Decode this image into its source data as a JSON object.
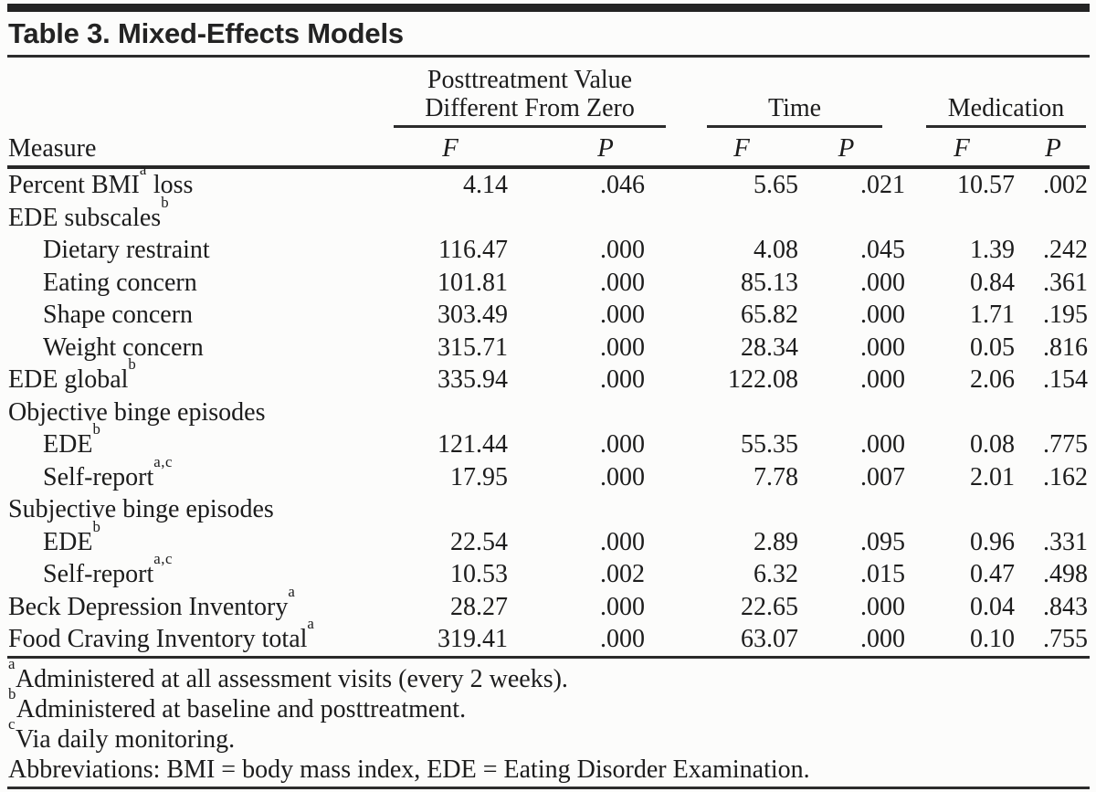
{
  "title": "Table 3. Mixed-Effects Models",
  "header": {
    "measure_label": "Measure",
    "groups": [
      {
        "line1": "Posttreatment Value",
        "line2": "Different From Zero"
      },
      {
        "line1": "",
        "line2": "Time"
      },
      {
        "line1": "",
        "line2": "Medication"
      }
    ],
    "sub": [
      "F",
      "P",
      "F",
      "P",
      "F",
      "P"
    ]
  },
  "rows": [
    {
      "pre": "Percent BMI",
      "sup": "a",
      "post": " loss",
      "indent": false,
      "values": [
        "4.14",
        ".046",
        "5.65",
        ".021",
        "10.57",
        ".002"
      ]
    },
    {
      "pre": "EDE subscales",
      "sup": "b",
      "post": "",
      "indent": false,
      "values": [
        "",
        "",
        "",
        "",
        "",
        ""
      ]
    },
    {
      "pre": "Dietary restraint",
      "sup": "",
      "post": "",
      "indent": true,
      "values": [
        "116.47",
        ".000",
        "4.08",
        ".045",
        "1.39",
        ".242"
      ]
    },
    {
      "pre": "Eating concern",
      "sup": "",
      "post": "",
      "indent": true,
      "values": [
        "101.81",
        ".000",
        "85.13",
        ".000",
        "0.84",
        ".361"
      ]
    },
    {
      "pre": "Shape concern",
      "sup": "",
      "post": "",
      "indent": true,
      "values": [
        "303.49",
        ".000",
        "65.82",
        ".000",
        "1.71",
        ".195"
      ]
    },
    {
      "pre": "Weight concern",
      "sup": "",
      "post": "",
      "indent": true,
      "values": [
        "315.71",
        ".000",
        "28.34",
        ".000",
        "0.05",
        ".816"
      ]
    },
    {
      "pre": "EDE global",
      "sup": "b",
      "post": "",
      "indent": false,
      "values": [
        "335.94",
        ".000",
        "122.08",
        ".000",
        "2.06",
        ".154"
      ]
    },
    {
      "pre": "Objective binge episodes",
      "sup": "",
      "post": "",
      "indent": false,
      "values": [
        "",
        "",
        "",
        "",
        "",
        ""
      ]
    },
    {
      "pre": "EDE",
      "sup": "b",
      "post": "",
      "indent": true,
      "values": [
        "121.44",
        ".000",
        "55.35",
        ".000",
        "0.08",
        ".775"
      ]
    },
    {
      "pre": "Self-report",
      "sup": "a,c",
      "post": "",
      "indent": true,
      "values": [
        "17.95",
        ".000",
        "7.78",
        ".007",
        "2.01",
        ".162"
      ]
    },
    {
      "pre": "Subjective binge episodes",
      "sup": "",
      "post": "",
      "indent": false,
      "values": [
        "",
        "",
        "",
        "",
        "",
        ""
      ]
    },
    {
      "pre": "EDE",
      "sup": "b",
      "post": "",
      "indent": true,
      "values": [
        "22.54",
        ".000",
        "2.89",
        ".095",
        "0.96",
        ".331"
      ]
    },
    {
      "pre": "Self-report",
      "sup": "a,c",
      "post": "",
      "indent": true,
      "values": [
        "10.53",
        ".002",
        "6.32",
        ".015",
        "0.47",
        ".498"
      ]
    },
    {
      "pre": "Beck Depression Inventory",
      "sup": "a",
      "post": "",
      "indent": false,
      "values": [
        "28.27",
        ".000",
        "22.65",
        ".000",
        "0.04",
        ".843"
      ]
    },
    {
      "pre": "Food Craving Inventory total",
      "sup": "a",
      "post": "",
      "indent": false,
      "values": [
        "319.41",
        ".000",
        "63.07",
        ".000",
        "0.10",
        ".755"
      ]
    }
  ],
  "footnotes": [
    {
      "sup": "a",
      "text": "Administered at all assessment visits (every 2 weeks)."
    },
    {
      "sup": "b",
      "text": "Administered at baseline and posttreatment."
    },
    {
      "sup": "c",
      "text": "Via daily monitoring."
    },
    {
      "sup": "",
      "text": "Abbreviations: BMI = body mass index, EDE = Eating Disorder Examination."
    }
  ],
  "colors": {
    "background": "#fcfcfb",
    "text": "#1c1c1c",
    "rule": "#2c2c2c",
    "top_bar": "#232323"
  }
}
